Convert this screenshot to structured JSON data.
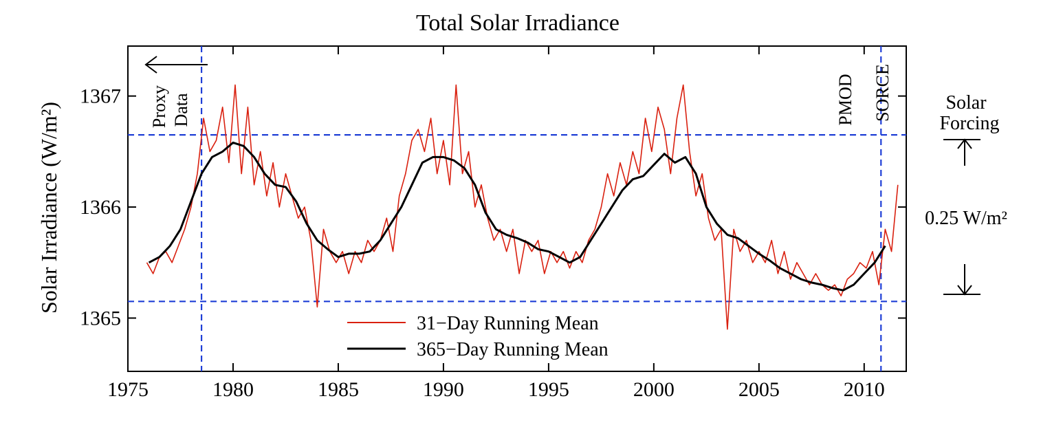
{
  "chart_data": {
    "type": "line",
    "title": "Total Solar Irradiance",
    "ylabel": "Solar Irradiance (W/m²)",
    "xlabel": "",
    "xlim": [
      1975,
      2012
    ],
    "ylim": [
      1364.52,
      1367.45
    ],
    "x_ticks": [
      1975,
      1980,
      1985,
      1990,
      1995,
      2000,
      2005,
      2010
    ],
    "y_ticks": [
      1365,
      1366,
      1367
    ],
    "grid": false,
    "legend_position": "bottom-center",
    "colors": {
      "monthly": "#d9200f",
      "annual": "#000000",
      "guides": "#1f3fd6"
    },
    "reference_lines": {
      "horizontal": [
        1366.65,
        1365.15
      ],
      "vertical": [
        1978.5,
        2010.8
      ]
    },
    "annotations": {
      "proxy": [
        "Proxy",
        "Data"
      ],
      "pmod": "PMOD",
      "sorce": "SORCE",
      "forcing": [
        "Solar",
        "Forcing"
      ],
      "forcing_value": "0.25 W/m²"
    },
    "series": [
      {
        "name": "31−Day Running Mean",
        "x": [
          1975.9,
          1976.2,
          1976.5,
          1976.8,
          1977.1,
          1977.4,
          1977.7,
          1978.0,
          1978.3,
          1978.6,
          1978.9,
          1979.2,
          1979.5,
          1979.8,
          1980.1,
          1980.4,
          1980.7,
          1981.0,
          1981.3,
          1981.6,
          1981.9,
          1982.2,
          1982.5,
          1982.8,
          1983.1,
          1983.4,
          1983.7,
          1984.0,
          1984.3,
          1984.6,
          1984.9,
          1985.2,
          1985.5,
          1985.8,
          1986.1,
          1986.4,
          1986.7,
          1987.0,
          1987.3,
          1987.6,
          1987.9,
          1988.2,
          1988.5,
          1988.8,
          1989.1,
          1989.4,
          1989.7,
          1990.0,
          1990.3,
          1990.6,
          1990.9,
          1991.2,
          1991.5,
          1991.8,
          1992.1,
          1992.4,
          1992.7,
          1993.0,
          1993.3,
          1993.6,
          1993.9,
          1994.2,
          1994.5,
          1994.8,
          1995.1,
          1995.4,
          1995.7,
          1996.0,
          1996.3,
          1996.6,
          1996.9,
          1997.2,
          1997.5,
          1997.8,
          1998.1,
          1998.4,
          1998.7,
          1999.0,
          1999.3,
          1999.6,
          1999.9,
          2000.2,
          2000.5,
          2000.8,
          2001.1,
          2001.4,
          2001.7,
          2002.0,
          2002.3,
          2002.6,
          2002.9,
          2003.2,
          2003.5,
          2003.8,
          2004.1,
          2004.4,
          2004.7,
          2005.0,
          2005.3,
          2005.6,
          2005.9,
          2006.2,
          2006.5,
          2006.8,
          2007.1,
          2007.4,
          2007.7,
          2008.0,
          2008.3,
          2008.6,
          2008.9,
          2009.2,
          2009.5,
          2009.8,
          2010.1,
          2010.4,
          2010.7,
          2011.0,
          2011.3,
          2011.6
        ],
        "values": [
          1365.5,
          1365.4,
          1365.55,
          1365.6,
          1365.5,
          1365.65,
          1365.8,
          1366.0,
          1366.3,
          1366.8,
          1366.5,
          1366.6,
          1366.9,
          1366.4,
          1367.1,
          1366.3,
          1366.9,
          1366.2,
          1366.5,
          1366.1,
          1366.4,
          1366.0,
          1366.3,
          1366.1,
          1365.9,
          1366.0,
          1365.7,
          1365.1,
          1365.8,
          1365.6,
          1365.5,
          1365.6,
          1365.4,
          1365.6,
          1365.5,
          1365.7,
          1365.6,
          1365.7,
          1365.9,
          1365.6,
          1366.1,
          1366.3,
          1366.6,
          1366.7,
          1366.5,
          1366.8,
          1366.3,
          1366.6,
          1366.2,
          1367.1,
          1366.3,
          1366.5,
          1366.0,
          1366.2,
          1365.9,
          1365.7,
          1365.8,
          1365.6,
          1365.8,
          1365.4,
          1365.7,
          1365.6,
          1365.7,
          1365.4,
          1365.6,
          1365.5,
          1365.6,
          1365.45,
          1365.6,
          1365.5,
          1365.7,
          1365.8,
          1366.0,
          1366.3,
          1366.1,
          1366.4,
          1366.2,
          1366.5,
          1366.3,
          1366.8,
          1366.5,
          1366.9,
          1366.7,
          1366.3,
          1366.8,
          1367.1,
          1366.5,
          1366.1,
          1366.3,
          1365.9,
          1365.7,
          1365.8,
          1364.9,
          1365.8,
          1365.6,
          1365.7,
          1365.5,
          1365.6,
          1365.5,
          1365.7,
          1365.4,
          1365.6,
          1365.35,
          1365.5,
          1365.4,
          1365.3,
          1365.4,
          1365.3,
          1365.25,
          1365.3,
          1365.2,
          1365.35,
          1365.4,
          1365.5,
          1365.45,
          1365.6,
          1365.3,
          1365.8,
          1365.6,
          1366.2
        ]
      },
      {
        "name": "365−Day Running Mean",
        "x": [
          1976.0,
          1976.5,
          1977.0,
          1977.5,
          1978.0,
          1978.5,
          1979.0,
          1979.5,
          1980.0,
          1980.5,
          1981.0,
          1981.5,
          1982.0,
          1982.5,
          1983.0,
          1983.5,
          1984.0,
          1984.5,
          1985.0,
          1985.5,
          1986.0,
          1986.5,
          1987.0,
          1987.5,
          1988.0,
          1988.5,
          1989.0,
          1989.5,
          1990.0,
          1990.5,
          1991.0,
          1991.5,
          1992.0,
          1992.5,
          1993.0,
          1993.5,
          1994.0,
          1994.5,
          1995.0,
          1995.5,
          1996.0,
          1996.5,
          1997.0,
          1997.5,
          1998.0,
          1998.5,
          1999.0,
          1999.5,
          2000.0,
          2000.5,
          2001.0,
          2001.5,
          2002.0,
          2002.5,
          2003.0,
          2003.5,
          2004.0,
          2004.5,
          2005.0,
          2005.5,
          2006.0,
          2006.5,
          2007.0,
          2007.5,
          2008.0,
          2008.5,
          2009.0,
          2009.5,
          2010.0,
          2010.5,
          2011.0
        ],
        "values": [
          1365.5,
          1365.55,
          1365.65,
          1365.8,
          1366.05,
          1366.3,
          1366.45,
          1366.5,
          1366.58,
          1366.55,
          1366.45,
          1366.3,
          1366.2,
          1366.18,
          1366.05,
          1365.85,
          1365.7,
          1365.62,
          1365.55,
          1365.58,
          1365.58,
          1365.6,
          1365.7,
          1365.85,
          1366.0,
          1366.2,
          1366.4,
          1366.45,
          1366.45,
          1366.42,
          1366.35,
          1366.2,
          1365.95,
          1365.8,
          1365.75,
          1365.72,
          1365.68,
          1365.62,
          1365.6,
          1365.55,
          1365.5,
          1365.55,
          1365.7,
          1365.85,
          1366.0,
          1366.15,
          1366.25,
          1366.28,
          1366.38,
          1366.48,
          1366.4,
          1366.45,
          1366.3,
          1366.0,
          1365.85,
          1365.75,
          1365.72,
          1365.65,
          1365.58,
          1365.52,
          1365.45,
          1365.4,
          1365.35,
          1365.32,
          1365.3,
          1365.27,
          1365.25,
          1365.3,
          1365.4,
          1365.5,
          1365.65
        ]
      }
    ]
  }
}
